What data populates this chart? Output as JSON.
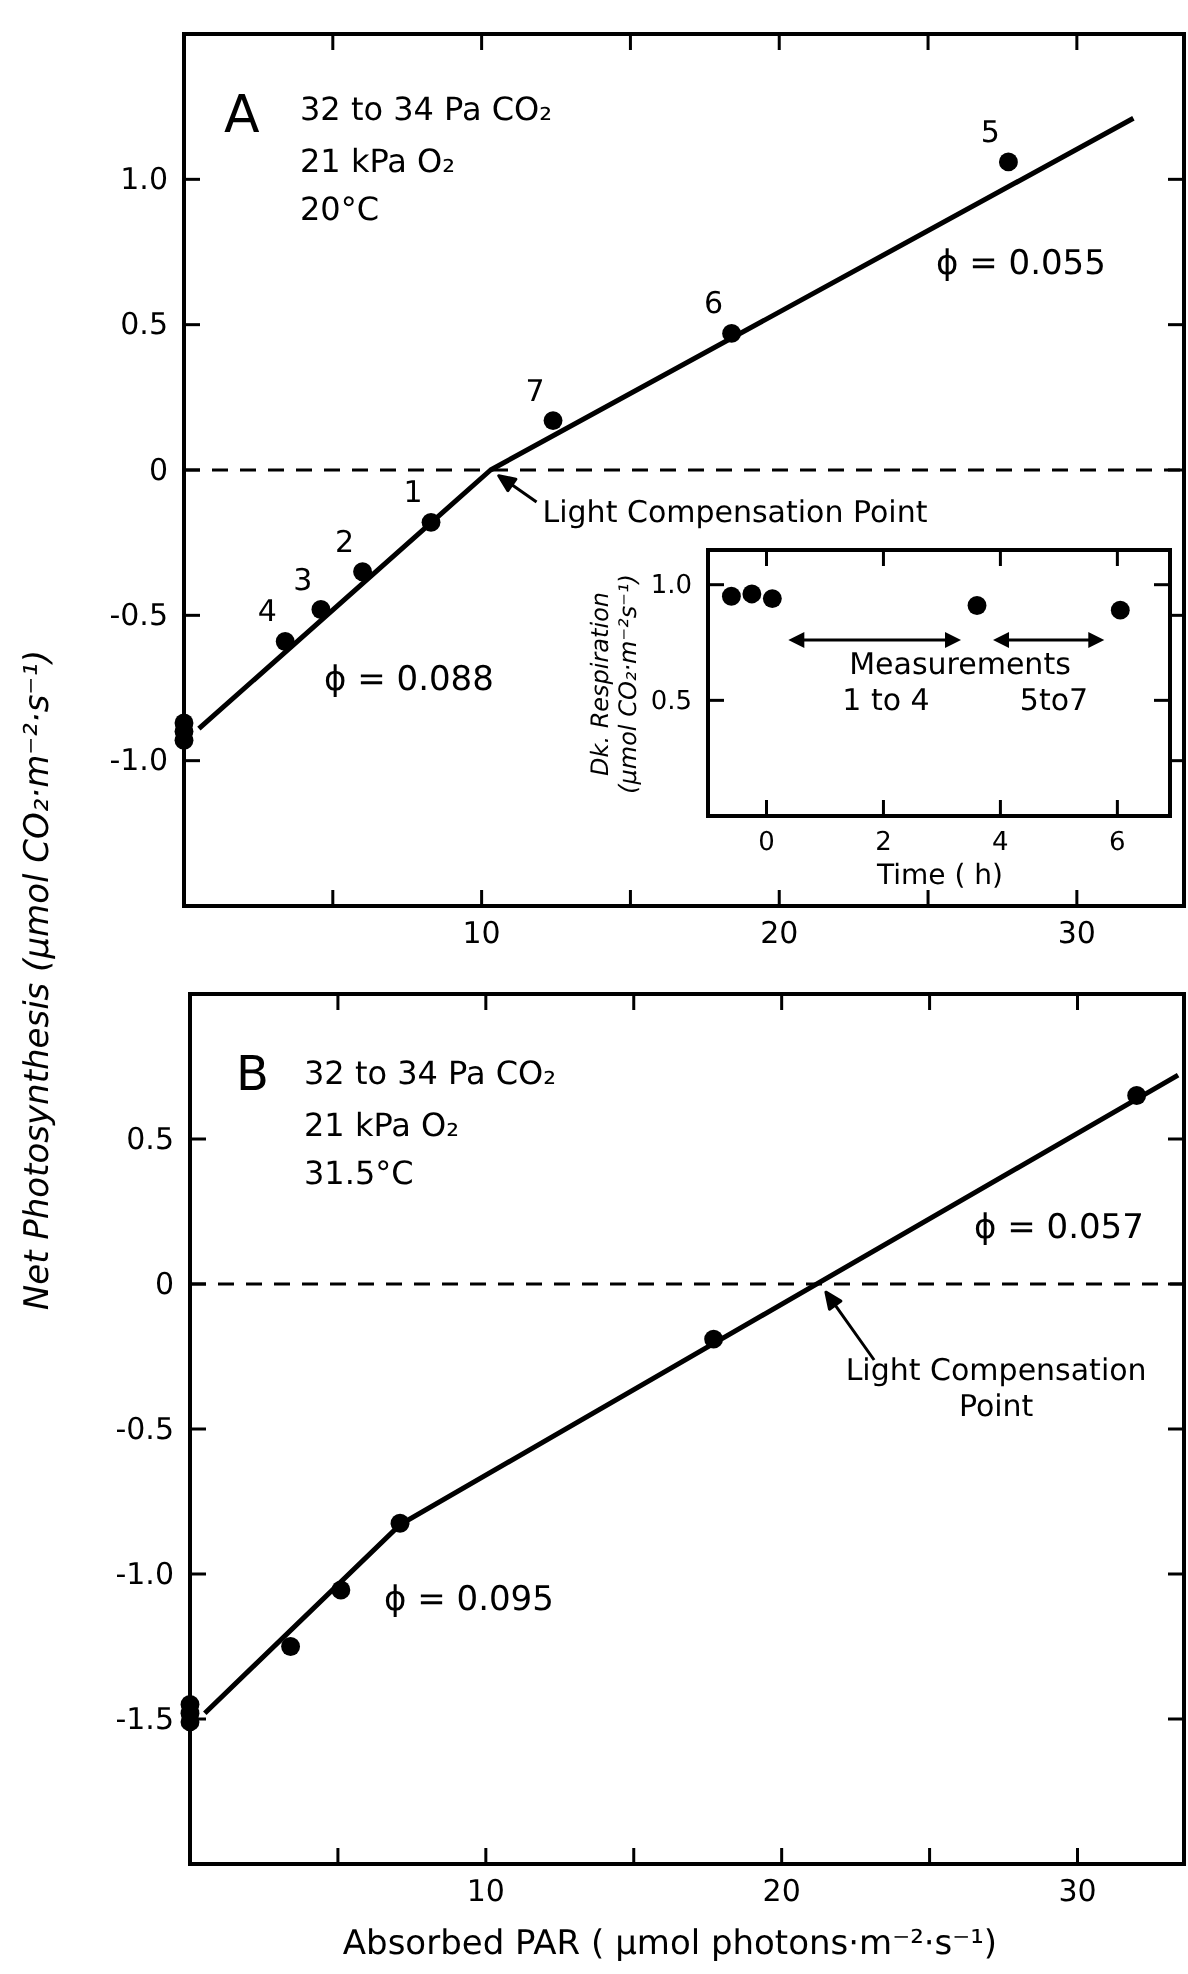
{
  "chart_data": [
    {
      "type": "scatter",
      "ylabel": "Net Photosynthesis (μmol CO₂·m⁻²·s⁻¹)",
      "xlim": [
        0,
        33.6
      ],
      "ylim": [
        -1.5,
        1.5
      ],
      "xticks": [
        {
          "value": 5,
          "label": null
        },
        10,
        {
          "value": 15,
          "label": null
        },
        20,
        {
          "value": 25,
          "label": null
        },
        30
      ],
      "yticks": [
        {
          "value": -1,
          "label": "-1.0"
        },
        -0.5,
        0,
        0.5,
        {
          "value": 1,
          "label": "1.0"
        }
      ],
      "series": [
        {
          "type": "scatter",
          "color": "#000000",
          "marker": "circle",
          "x": [
            0,
            0,
            0,
            3.4,
            4.6,
            6.0,
            8.3,
            12.4,
            18.4,
            27.7
          ],
          "values": [
            -0.87,
            -0.9,
            -0.93,
            -0.59,
            -0.48,
            -0.35,
            -0.18,
            0.17,
            0.47,
            1.06
          ]
        },
        {
          "type": "line",
          "color": "#000000",
          "line_style": "solid",
          "x": [
            0.5,
            10.3,
            31.9
          ],
          "values": [
            -0.89,
            0,
            1.21
          ]
        }
      ],
      "ref_lines": [
        {
          "axis": "y",
          "value": 0,
          "color": "#000000",
          "line_style": "dashed"
        }
      ],
      "annotations": [
        "A",
        "32 to 34 Pa CO₂",
        "21 kPa O₂",
        "20°C",
        {
          "text": "1",
          "x": 8.3,
          "y": -0.18
        },
        {
          "text": "2",
          "x": 6.0,
          "y": -0.35
        },
        {
          "text": "3",
          "x": 4.6,
          "y": -0.48
        },
        {
          "text": "4",
          "x": 3.4,
          "y": -0.59
        },
        {
          "text": "5",
          "x": 27.7,
          "y": 1.06
        },
        {
          "text": "6",
          "x": 18.4,
          "y": 0.47
        },
        {
          "text": "7",
          "x": 12.4,
          "y": 0.17
        },
        {
          "text": "Light Compensation Point",
          "x": 10.3,
          "y": 0
        },
        "ϕ = 0.088",
        "ϕ = 0.055"
      ]
    },
    {
      "type": "scatter",
      "xlabel": "Time ( h)",
      "ylabel": "Dk. Respiration (μmol CO₂·m⁻²s⁻¹)",
      "xlim": [
        -1,
        6.9
      ],
      "ylim": [
        0,
        1.15
      ],
      "xticks": [
        0,
        2,
        4,
        6
      ],
      "yticks": [
        {
          "value": 0.5,
          "label": "0.5"
        },
        {
          "value": 1,
          "label": "1.0"
        }
      ],
      "series": [
        {
          "type": "scatter",
          "color": "#000000",
          "marker": "circle",
          "x": [
            -0.6,
            -0.25,
            0.1,
            3.6,
            6.05
          ],
          "values": [
            0.95,
            0.96,
            0.94,
            0.91,
            0.89
          ]
        }
      ],
      "annotations": [
        "Measurements",
        "1 to 4",
        "5to7"
      ]
    },
    {
      "type": "scatter",
      "xlabel": "Absorbed PAR ( μmol photons·m⁻²·s⁻¹)",
      "xlim": [
        0,
        33.6
      ],
      "ylim": [
        -2,
        1
      ],
      "xticks": [
        {
          "value": 5,
          "label": null
        },
        10,
        {
          "value": 15,
          "label": null
        },
        20,
        {
          "value": 25,
          "label": null
        },
        30
      ],
      "yticks": [
        -1.5,
        {
          "value": -1,
          "label": "-1.0"
        },
        -0.5,
        0,
        0.5
      ],
      "series": [
        {
          "type": "scatter",
          "color": "#000000",
          "marker": "circle",
          "x": [
            0,
            0,
            0,
            3.4,
            5.1,
            7.1,
            17.7,
            32.0
          ],
          "values": [
            -1.45,
            -1.48,
            -1.51,
            -1.25,
            -1.055,
            -0.825,
            -0.19,
            0.65
          ]
        },
        {
          "type": "line",
          "color": "#000000",
          "line_style": "solid",
          "x": [
            0.5,
            7.1,
            33.4
          ],
          "values": [
            -1.48,
            -0.83,
            0.72
          ]
        }
      ],
      "ref_lines": [
        {
          "axis": "y",
          "value": 0,
          "color": "#000000",
          "line_style": "dashed"
        }
      ],
      "annotations": [
        "B",
        "32 to 34 Pa CO₂",
        "21 kPa O₂",
        "31.5°C",
        {
          "text": "Light Compensation Point",
          "x": 21.3,
          "y": 0
        },
        "ϕ = 0.057",
        "ϕ = 0.095"
      ]
    }
  ]
}
